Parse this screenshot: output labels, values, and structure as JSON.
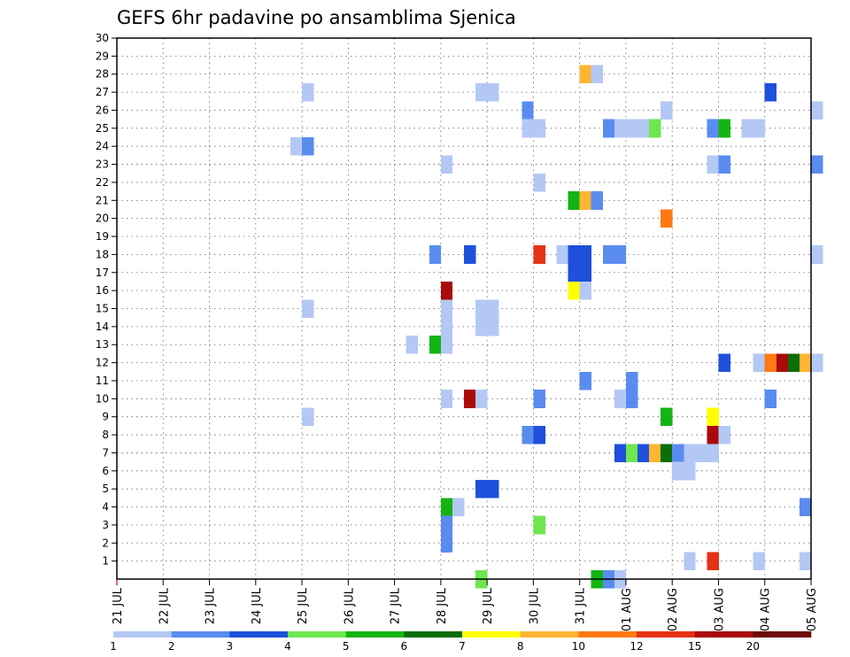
{
  "chart_data": {
    "type": "heatmap",
    "title": "GEFS 6hr padavine po ansamblima Sjenica",
    "xlabel": "",
    "ylabel": "",
    "x_start": "21 JUL 00z",
    "x_end": "05 AUG 00z",
    "x_step_hours": 6,
    "x_ticks": [
      "21 JUL",
      "22 JUL",
      "23 JUL",
      "24 JUL",
      "25 JUL",
      "26 JUL",
      "27 JUL",
      "28 JUL",
      "29 JUL",
      "30 JUL",
      "31 JUL",
      "01 AUG",
      "02 AUG",
      "03 AUG",
      "04 AUG",
      "05 AUG"
    ],
    "ylim": [
      0,
      30
    ],
    "y_ticks": [
      "1",
      "2",
      "3",
      "4",
      "5",
      "6",
      "7",
      "8",
      "9",
      "10",
      "11",
      "12",
      "13",
      "14",
      "15",
      "16",
      "17",
      "18",
      "19",
      "20",
      "21",
      "22",
      "23",
      "24",
      "25",
      "26",
      "27",
      "28",
      "29",
      "30"
    ],
    "grid": true,
    "colorbar": {
      "labels": [
        "1",
        "2",
        "3",
        "4",
        "5",
        "6",
        "7",
        "8",
        "10",
        "12",
        "15",
        "20"
      ],
      "colors": [
        "#b4c8f5",
        "#5a8cf0",
        "#1e50dc",
        "#6ee650",
        "#14b414",
        "#0a6e0a",
        "#ffff00",
        "#ffb432",
        "#ff7814",
        "#e63214",
        "#aa0a0a",
        "#6e0a0a"
      ]
    },
    "cells": [
      {
        "member": 28,
        "slot": 40,
        "bin": 8
      },
      {
        "member": 28,
        "slot": 41,
        "bin": 1
      },
      {
        "member": 27,
        "slot": 16,
        "bin": 1
      },
      {
        "member": 27,
        "slot": 31,
        "bin": 1
      },
      {
        "member": 27,
        "slot": 32,
        "bin": 1
      },
      {
        "member": 27,
        "slot": 56,
        "bin": 3
      },
      {
        "member": 26,
        "slot": 35,
        "bin": 2
      },
      {
        "member": 26,
        "slot": 47,
        "bin": 1
      },
      {
        "member": 26,
        "slot": 60,
        "bin": 1
      },
      {
        "member": 25,
        "slot": 35,
        "bin": 1
      },
      {
        "member": 25,
        "slot": 36,
        "bin": 1
      },
      {
        "member": 25,
        "slot": 42,
        "bin": 2
      },
      {
        "member": 25,
        "slot": 43,
        "bin": 1
      },
      {
        "member": 25,
        "slot": 44,
        "bin": 1
      },
      {
        "member": 25,
        "slot": 45,
        "bin": 1
      },
      {
        "member": 25,
        "slot": 46,
        "bin": 4
      },
      {
        "member": 25,
        "slot": 51,
        "bin": 2
      },
      {
        "member": 25,
        "slot": 52,
        "bin": 5
      },
      {
        "member": 25,
        "slot": 54,
        "bin": 1
      },
      {
        "member": 25,
        "slot": 55,
        "bin": 1
      },
      {
        "member": 24,
        "slot": 15,
        "bin": 1
      },
      {
        "member": 24,
        "slot": 16,
        "bin": 2
      },
      {
        "member": 23,
        "slot": 28,
        "bin": 1
      },
      {
        "member": 23,
        "slot": 51,
        "bin": 1
      },
      {
        "member": 23,
        "slot": 52,
        "bin": 2
      },
      {
        "member": 23,
        "slot": 60,
        "bin": 2
      },
      {
        "member": 22,
        "slot": 36,
        "bin": 1
      },
      {
        "member": 21,
        "slot": 39,
        "bin": 5
      },
      {
        "member": 21,
        "slot": 40,
        "bin": 8
      },
      {
        "member": 21,
        "slot": 41,
        "bin": 2
      },
      {
        "member": 20,
        "slot": 47,
        "bin": 9
      },
      {
        "member": 18,
        "slot": 27,
        "bin": 2
      },
      {
        "member": 18,
        "slot": 30,
        "bin": 3
      },
      {
        "member": 18,
        "slot": 36,
        "bin": 10
      },
      {
        "member": 18,
        "slot": 38,
        "bin": 1
      },
      {
        "member": 18,
        "slot": 39,
        "bin": 3
      },
      {
        "member": 18,
        "slot": 40,
        "bin": 3
      },
      {
        "member": 18,
        "slot": 42,
        "bin": 2
      },
      {
        "member": 18,
        "slot": 43,
        "bin": 2
      },
      {
        "member": 18,
        "slot": 60,
        "bin": 1
      },
      {
        "member": 17,
        "slot": 39,
        "bin": 3
      },
      {
        "member": 17,
        "slot": 40,
        "bin": 3
      },
      {
        "member": 16,
        "slot": 28,
        "bin": 11
      },
      {
        "member": 16,
        "slot": 39,
        "bin": 7
      },
      {
        "member": 16,
        "slot": 40,
        "bin": 1
      },
      {
        "member": 15,
        "slot": 16,
        "bin": 1
      },
      {
        "member": 15,
        "slot": 28,
        "bin": 1
      },
      {
        "member": 15,
        "slot": 31,
        "bin": 1
      },
      {
        "member": 15,
        "slot": 32,
        "bin": 1
      },
      {
        "member": 14,
        "slot": 28,
        "bin": 1
      },
      {
        "member": 14,
        "slot": 31,
        "bin": 1
      },
      {
        "member": 14,
        "slot": 32,
        "bin": 1
      },
      {
        "member": 13,
        "slot": 25,
        "bin": 1
      },
      {
        "member": 13,
        "slot": 27,
        "bin": 5
      },
      {
        "member": 13,
        "slot": 28,
        "bin": 1
      },
      {
        "member": 12,
        "slot": 52,
        "bin": 3
      },
      {
        "member": 12,
        "slot": 55,
        "bin": 1
      },
      {
        "member": 12,
        "slot": 56,
        "bin": 9
      },
      {
        "member": 12,
        "slot": 57,
        "bin": 11
      },
      {
        "member": 12,
        "slot": 58,
        "bin": 6
      },
      {
        "member": 12,
        "slot": 59,
        "bin": 8
      },
      {
        "member": 12,
        "slot": 60,
        "bin": 1
      },
      {
        "member": 11,
        "slot": 40,
        "bin": 2
      },
      {
        "member": 11,
        "slot": 44,
        "bin": 2
      },
      {
        "member": 10,
        "slot": 28,
        "bin": 1
      },
      {
        "member": 10,
        "slot": 30,
        "bin": 11
      },
      {
        "member": 10,
        "slot": 31,
        "bin": 1
      },
      {
        "member": 10,
        "slot": 36,
        "bin": 2
      },
      {
        "member": 10,
        "slot": 43,
        "bin": 1
      },
      {
        "member": 10,
        "slot": 44,
        "bin": 2
      },
      {
        "member": 10,
        "slot": 56,
        "bin": 2
      },
      {
        "member": 9,
        "slot": 16,
        "bin": 1
      },
      {
        "member": 9,
        "slot": 47,
        "bin": 5
      },
      {
        "member": 9,
        "slot": 51,
        "bin": 7
      },
      {
        "member": 8,
        "slot": 35,
        "bin": 2
      },
      {
        "member": 8,
        "slot": 36,
        "bin": 3
      },
      {
        "member": 8,
        "slot": 51,
        "bin": 11
      },
      {
        "member": 8,
        "slot": 52,
        "bin": 1
      },
      {
        "member": 7,
        "slot": 43,
        "bin": 3
      },
      {
        "member": 7,
        "slot": 44,
        "bin": 4
      },
      {
        "member": 7,
        "slot": 45,
        "bin": 3
      },
      {
        "member": 7,
        "slot": 46,
        "bin": 8
      },
      {
        "member": 7,
        "slot": 47,
        "bin": 6
      },
      {
        "member": 7,
        "slot": 48,
        "bin": 2
      },
      {
        "member": 7,
        "slot": 49,
        "bin": 1
      },
      {
        "member": 7,
        "slot": 50,
        "bin": 1
      },
      {
        "member": 7,
        "slot": 51,
        "bin": 1
      },
      {
        "member": 6,
        "slot": 48,
        "bin": 1
      },
      {
        "member": 6,
        "slot": 49,
        "bin": 1
      },
      {
        "member": 5,
        "slot": 31,
        "bin": 3
      },
      {
        "member": 5,
        "slot": 32,
        "bin": 3
      },
      {
        "member": 4,
        "slot": 28,
        "bin": 5
      },
      {
        "member": 4,
        "slot": 29,
        "bin": 1
      },
      {
        "member": 4,
        "slot": 59,
        "bin": 2
      },
      {
        "member": 3,
        "slot": 28,
        "bin": 2
      },
      {
        "member": 3,
        "slot": 36,
        "bin": 4
      },
      {
        "member": 2,
        "slot": 28,
        "bin": 2
      },
      {
        "member": 1,
        "slot": 49,
        "bin": 1
      },
      {
        "member": 1,
        "slot": 51,
        "bin": 10
      },
      {
        "member": 1,
        "slot": 55,
        "bin": 1
      },
      {
        "member": 1,
        "slot": 59,
        "bin": 1
      },
      {
        "member": 0,
        "slot": 31,
        "bin": 4
      },
      {
        "member": 0,
        "slot": 41,
        "bin": 5
      },
      {
        "member": 0,
        "slot": 42,
        "bin": 2
      },
      {
        "member": 0,
        "slot": 43,
        "bin": 1
      }
    ]
  }
}
